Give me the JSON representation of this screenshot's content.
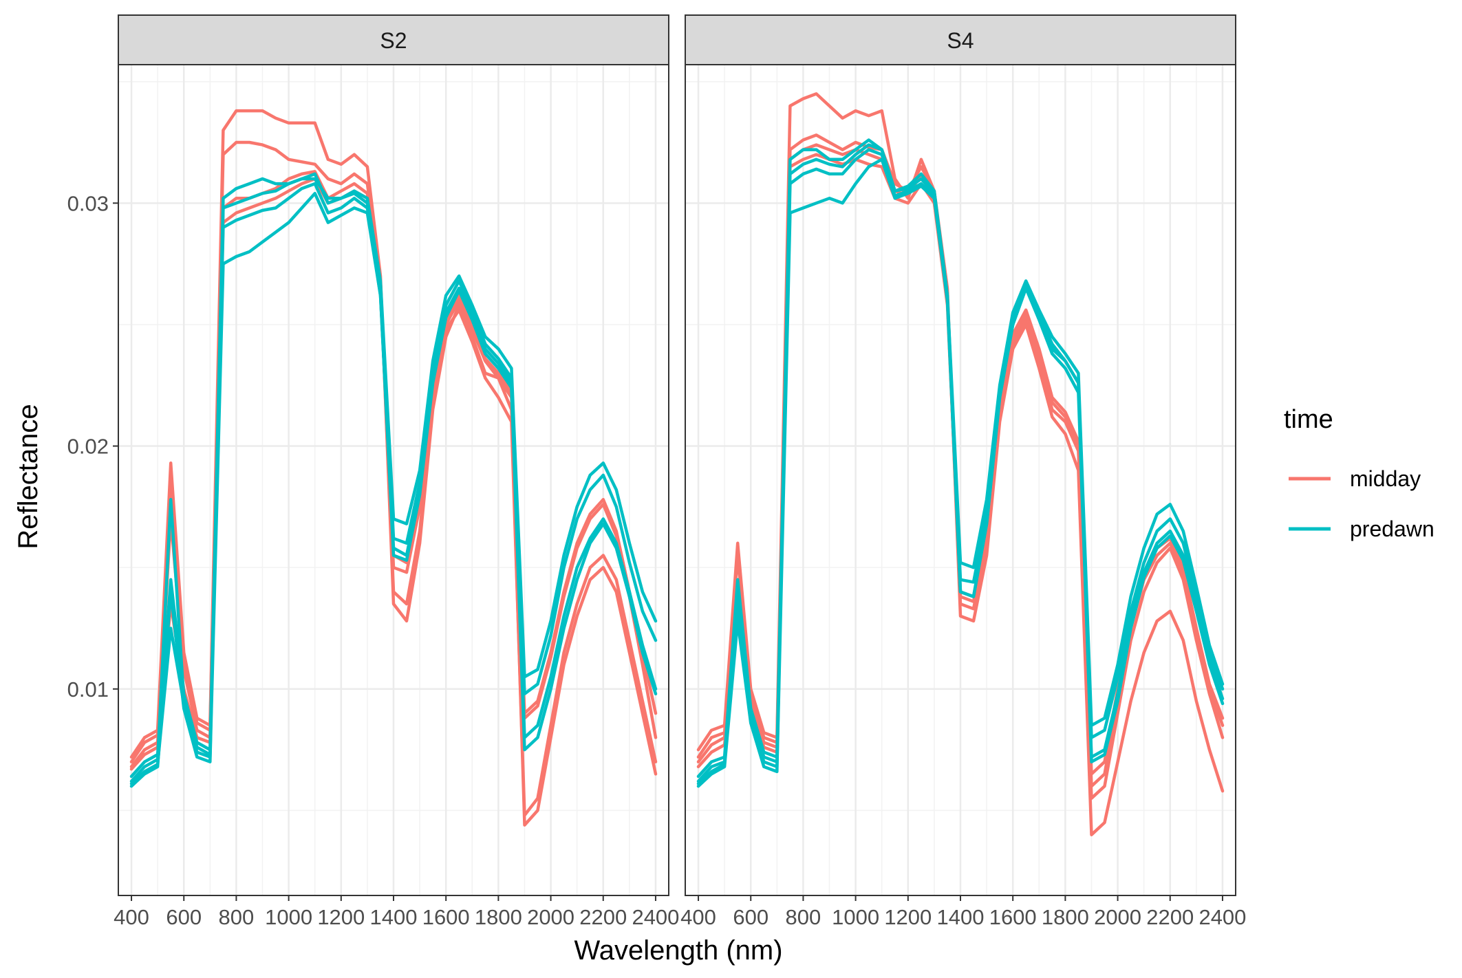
{
  "chart_data": {
    "type": "line",
    "xlabel": "Wavelength (nm)",
    "ylabel": "Reflectance",
    "xlim": [
      350,
      2450
    ],
    "ylim": [
      0.0015,
      0.0357
    ],
    "x_ticks": [
      400,
      600,
      800,
      1000,
      1200,
      1400,
      1600,
      1800,
      2000,
      2200,
      2400
    ],
    "x_tick_labels": [
      "400",
      "600",
      "800",
      "1000",
      "1200",
      "1400",
      "1600",
      "1800",
      "2000",
      "2200",
      "2400"
    ],
    "y_ticks": [
      0.01,
      0.02,
      0.03
    ],
    "y_tick_labels": [
      "0.01",
      "0.02",
      "0.03"
    ],
    "grid": true,
    "legend": {
      "title": "time",
      "position": "right",
      "entries": [
        {
          "label": "midday",
          "color": "#F8766D"
        },
        {
          "label": "predawn",
          "color": "#00BFC4"
        }
      ]
    },
    "x": [
      400,
      450,
      500,
      550,
      600,
      650,
      700,
      750,
      800,
      850,
      900,
      950,
      1000,
      1050,
      1100,
      1150,
      1200,
      1250,
      1300,
      1350,
      1400,
      1450,
      1500,
      1550,
      1600,
      1650,
      1700,
      1750,
      1800,
      1850,
      1900,
      1950,
      2000,
      2050,
      2100,
      2150,
      2200,
      2250,
      2300,
      2350,
      2400
    ],
    "panels": [
      {
        "strip_label": "S2",
        "series": [
          {
            "group": "midday",
            "values": [
              0.0072,
              0.008,
              0.0083,
              0.0193,
              0.0115,
              0.0088,
              0.0085,
              0.033,
              0.0338,
              0.0338,
              0.0338,
              0.0335,
              0.0333,
              0.0333,
              0.0333,
              0.0318,
              0.0316,
              0.032,
              0.0315,
              0.027,
              0.0135,
              0.0128,
              0.016,
              0.0215,
              0.0245,
              0.0258,
              0.0245,
              0.023,
              0.0228,
              0.0215,
              0.0044,
              0.005,
              0.008,
              0.011,
              0.013,
              0.0145,
              0.015,
              0.014,
              0.0115,
              0.009,
              0.0065
            ]
          },
          {
            "group": "midday",
            "values": [
              0.007,
              0.0078,
              0.0081,
              0.0185,
              0.0112,
              0.0086,
              0.0083,
              0.032,
              0.0325,
              0.0325,
              0.0324,
              0.0322,
              0.0318,
              0.0317,
              0.0316,
              0.031,
              0.0308,
              0.0312,
              0.0308,
              0.0268,
              0.014,
              0.0135,
              0.0165,
              0.0218,
              0.0248,
              0.0256,
              0.0243,
              0.0228,
              0.022,
              0.021,
              0.0048,
              0.0055,
              0.0085,
              0.0115,
              0.0135,
              0.015,
              0.0155,
              0.0145,
              0.012,
              0.0095,
              0.007
            ]
          },
          {
            "group": "midday",
            "values": [
              0.0068,
              0.0075,
              0.0078,
              0.017,
              0.0108,
              0.0083,
              0.008,
              0.0298,
              0.0302,
              0.0302,
              0.0304,
              0.0306,
              0.031,
              0.0312,
              0.0313,
              0.0302,
              0.0305,
              0.0308,
              0.0304,
              0.0265,
              0.015,
              0.0148,
              0.0175,
              0.022,
              0.025,
              0.026,
              0.0248,
              0.0235,
              0.0228,
              0.022,
              0.009,
              0.0095,
              0.0115,
              0.014,
              0.016,
              0.0172,
              0.0178,
              0.0165,
              0.014,
              0.0115,
              0.009
            ]
          },
          {
            "group": "midday",
            "values": [
              0.0067,
              0.0073,
              0.0076,
              0.0135,
              0.01,
              0.008,
              0.0078,
              0.0292,
              0.0296,
              0.0298,
              0.03,
              0.0302,
              0.0305,
              0.0308,
              0.031,
              0.03,
              0.0302,
              0.0305,
              0.0302,
              0.0263,
              0.0155,
              0.0152,
              0.0178,
              0.0222,
              0.0252,
              0.0262,
              0.025,
              0.0236,
              0.023,
              0.0222,
              0.0088,
              0.0093,
              0.0113,
              0.0138,
              0.0158,
              0.017,
              0.0176,
              0.0163,
              0.0138,
              0.011,
              0.008
            ]
          },
          {
            "group": "predawn",
            "values": [
              0.0064,
              0.007,
              0.0073,
              0.0145,
              0.0098,
              0.0078,
              0.0075,
              0.0302,
              0.0306,
              0.0308,
              0.031,
              0.0308,
              0.0308,
              0.031,
              0.031,
              0.0302,
              0.0302,
              0.0305,
              0.0302,
              0.0268,
              0.017,
              0.0168,
              0.019,
              0.0235,
              0.0262,
              0.027,
              0.0258,
              0.0245,
              0.024,
              0.0232,
              0.0105,
              0.0108,
              0.0128,
              0.0155,
              0.0175,
              0.0188,
              0.0193,
              0.0182,
              0.016,
              0.014,
              0.0128
            ]
          },
          {
            "group": "predawn",
            "values": [
              0.0062,
              0.0068,
              0.0071,
              0.0178,
              0.0096,
              0.0076,
              0.0073,
              0.0298,
              0.03,
              0.0302,
              0.0304,
              0.0305,
              0.0308,
              0.031,
              0.0312,
              0.03,
              0.0302,
              0.0304,
              0.03,
              0.0265,
              0.0162,
              0.016,
              0.0185,
              0.023,
              0.0258,
              0.0268,
              0.0256,
              0.0242,
              0.0236,
              0.0228,
              0.0098,
              0.0102,
              0.0122,
              0.015,
              0.017,
              0.0182,
              0.0188,
              0.0175,
              0.0152,
              0.0132,
              0.012
            ]
          },
          {
            "group": "predawn",
            "values": [
              0.0061,
              0.0066,
              0.0069,
              0.0125,
              0.0094,
              0.0074,
              0.0072,
              0.029,
              0.0293,
              0.0295,
              0.0297,
              0.0298,
              0.0302,
              0.0306,
              0.0308,
              0.0296,
              0.0298,
              0.0302,
              0.0298,
              0.0262,
              0.0158,
              0.0155,
              0.0182,
              0.0228,
              0.0255,
              0.0265,
              0.0254,
              0.024,
              0.0234,
              0.0226,
              0.008,
              0.0085,
              0.0105,
              0.013,
              0.015,
              0.0162,
              0.017,
              0.016,
              0.014,
              0.0118,
              0.01
            ]
          },
          {
            "group": "predawn",
            "values": [
              0.006,
              0.0065,
              0.0068,
              0.014,
              0.0092,
              0.0072,
              0.007,
              0.0275,
              0.0278,
              0.028,
              0.0284,
              0.0288,
              0.0292,
              0.0298,
              0.0304,
              0.0292,
              0.0295,
              0.0298,
              0.0296,
              0.0262,
              0.0155,
              0.0153,
              0.018,
              0.0226,
              0.0253,
              0.0264,
              0.0252,
              0.0238,
              0.0232,
              0.0224,
              0.0075,
              0.008,
              0.01,
              0.0125,
              0.0145,
              0.016,
              0.0168,
              0.0158,
              0.0138,
              0.0115,
              0.0098
            ]
          }
        ]
      },
      {
        "strip_label": "S4",
        "series": [
          {
            "group": "midday",
            "values": [
              0.0075,
              0.0083,
              0.0085,
              0.016,
              0.01,
              0.0082,
              0.008,
              0.034,
              0.0343,
              0.0345,
              0.034,
              0.0335,
              0.0338,
              0.0336,
              0.0338,
              0.031,
              0.0302,
              0.0318,
              0.0305,
              0.0265,
              0.013,
              0.0128,
              0.0155,
              0.021,
              0.024,
              0.025,
              0.0232,
              0.0212,
              0.0205,
              0.019,
              0.004,
              0.0045,
              0.007,
              0.0095,
              0.0115,
              0.0128,
              0.0132,
              0.012,
              0.0095,
              0.0075,
              0.0058
            ]
          },
          {
            "group": "midday",
            "values": [
              0.0072,
              0.008,
              0.0082,
              0.0155,
              0.0098,
              0.008,
              0.0078,
              0.0322,
              0.0326,
              0.0328,
              0.0325,
              0.0322,
              0.0325,
              0.0323,
              0.0322,
              0.0308,
              0.0305,
              0.0315,
              0.0305,
              0.0262,
              0.0135,
              0.0133,
              0.016,
              0.0212,
              0.0242,
              0.0252,
              0.0235,
              0.0215,
              0.021,
              0.0198,
              0.0055,
              0.006,
              0.009,
              0.012,
              0.014,
              0.0152,
              0.0158,
              0.0145,
              0.012,
              0.0098,
              0.008
            ]
          },
          {
            "group": "midday",
            "values": [
              0.007,
              0.0077,
              0.008,
              0.0145,
              0.0096,
              0.0078,
              0.0076,
              0.0318,
              0.0322,
              0.0324,
              0.0322,
              0.032,
              0.0322,
              0.032,
              0.0318,
              0.0305,
              0.0303,
              0.0312,
              0.0303,
              0.026,
              0.0138,
              0.0136,
              0.0162,
              0.0214,
              0.0244,
              0.0254,
              0.0238,
              0.0218,
              0.0212,
              0.02,
              0.006,
              0.0065,
              0.0095,
              0.0125,
              0.0145,
              0.0155,
              0.016,
              0.0148,
              0.0122,
              0.01,
              0.0085
            ]
          },
          {
            "group": "midday",
            "values": [
              0.0068,
              0.0074,
              0.0077,
              0.013,
              0.0094,
              0.0076,
              0.0074,
              0.0315,
              0.0318,
              0.032,
              0.0318,
              0.0316,
              0.0318,
              0.0316,
              0.0315,
              0.0302,
              0.03,
              0.0308,
              0.03,
              0.0258,
              0.014,
              0.0138,
              0.0164,
              0.0216,
              0.0246,
              0.0256,
              0.024,
              0.022,
              0.0214,
              0.0202,
              0.0065,
              0.007,
              0.01,
              0.0128,
              0.0148,
              0.0158,
              0.0162,
              0.015,
              0.0125,
              0.0102,
              0.0088
            ]
          },
          {
            "group": "predawn",
            "values": [
              0.0064,
              0.007,
              0.0072,
              0.0145,
              0.0092,
              0.0074,
              0.0072,
              0.0318,
              0.0322,
              0.0322,
              0.0318,
              0.0318,
              0.0322,
              0.0326,
              0.0322,
              0.0305,
              0.0307,
              0.0312,
              0.0305,
              0.0262,
              0.0152,
              0.015,
              0.0178,
              0.0225,
              0.0255,
              0.0268,
              0.0256,
              0.0245,
              0.0238,
              0.023,
              0.0085,
              0.0088,
              0.011,
              0.0138,
              0.0158,
              0.0172,
              0.0176,
              0.0165,
              0.0142,
              0.0118,
              0.0102
            ]
          },
          {
            "group": "predawn",
            "values": [
              0.0062,
              0.0068,
              0.007,
              0.014,
              0.009,
              0.0072,
              0.007,
              0.0312,
              0.0316,
              0.0318,
              0.0316,
              0.0315,
              0.032,
              0.0324,
              0.0322,
              0.0305,
              0.0306,
              0.031,
              0.0304,
              0.0262,
              0.0145,
              0.0144,
              0.0172,
              0.0222,
              0.0252,
              0.0266,
              0.0254,
              0.0242,
              0.0235,
              0.0226,
              0.008,
              0.0083,
              0.0105,
              0.0132,
              0.0152,
              0.0165,
              0.017,
              0.016,
              0.0138,
              0.0115,
              0.01
            ]
          },
          {
            "group": "predawn",
            "values": [
              0.0061,
              0.0066,
              0.0069,
              0.0135,
              0.0088,
              0.007,
              0.0068,
              0.0308,
              0.0312,
              0.0314,
              0.0312,
              0.0312,
              0.0318,
              0.0322,
              0.032,
              0.0303,
              0.0305,
              0.0308,
              0.0303,
              0.026,
              0.014,
              0.0138,
              0.0168,
              0.022,
              0.025,
              0.0265,
              0.0252,
              0.0238,
              0.0232,
              0.0222,
              0.0072,
              0.0075,
              0.0098,
              0.0128,
              0.0148,
              0.016,
              0.0165,
              0.0155,
              0.0134,
              0.0112,
              0.0096
            ]
          },
          {
            "group": "predawn",
            "values": [
              0.006,
              0.0065,
              0.0068,
              0.0128,
              0.0086,
              0.0068,
              0.0066,
              0.0296,
              0.0298,
              0.03,
              0.0302,
              0.03,
              0.0308,
              0.0315,
              0.0318,
              0.0302,
              0.0304,
              0.0307,
              0.0302,
              0.026,
              0.014,
              0.0138,
              0.0168,
              0.022,
              0.025,
              0.0265,
              0.0254,
              0.024,
              0.0235,
              0.0226,
              0.007,
              0.0073,
              0.0095,
              0.0125,
              0.0146,
              0.0158,
              0.0163,
              0.0153,
              0.0132,
              0.011,
              0.0094
            ]
          }
        ]
      }
    ]
  }
}
